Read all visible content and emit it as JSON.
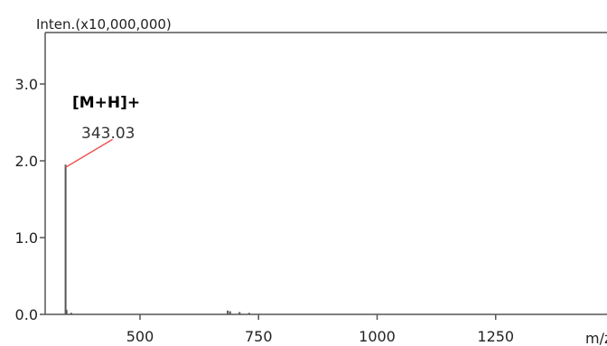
{
  "chart_data": {
    "type": "line",
    "title": "",
    "ylabel": "Inten.(x10,000,000)",
    "xlabel": "m/z",
    "xlim": [
      300,
      1300
    ],
    "ylim": [
      0,
      3.5
    ],
    "x_ticks": [
      500,
      750,
      1000,
      1250
    ],
    "x_tick_labels": [
      "500",
      "750",
      "1000",
      "1250"
    ],
    "y_ticks": [
      0,
      1,
      2,
      3
    ],
    "y_tick_labels": [
      "0.0",
      "1.0",
      "2.0",
      "3.0"
    ],
    "grid": false,
    "series": [
      {
        "color": "#555555",
        "peaks": [
          {
            "x": 343.03,
            "y": 1.95
          },
          {
            "x": 345,
            "y": 0.06
          },
          {
            "x": 355,
            "y": 0.02
          },
          {
            "x": 685,
            "y": 0.05
          },
          {
            "x": 690,
            "y": 0.04
          },
          {
            "x": 710,
            "y": 0.03
          },
          {
            "x": 730,
            "y": 0.02
          }
        ]
      }
    ],
    "annotations": [
      {
        "text": "[M+H]+",
        "x": 343.03,
        "y": 1.95
      },
      {
        "text": "343.03",
        "x": 343.03,
        "y": 1.95
      }
    ],
    "annotation_color": "#ee5555"
  }
}
